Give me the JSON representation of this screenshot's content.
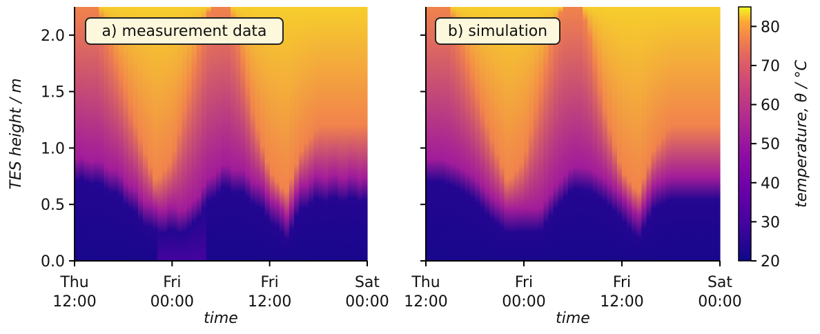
{
  "chart_data": {
    "type": "heatmap",
    "panels": [
      {
        "label": "a) measurement data",
        "xlabel": "time",
        "ylabel": "TES height / m",
        "source": "measurement"
      },
      {
        "label": "b) simulation",
        "xlabel": "time",
        "ylabel": "",
        "source": "simulation"
      }
    ],
    "x_range": [
      "Thu 12:00",
      "Sat 00:00"
    ],
    "x_ticks": [
      {
        "line1": "Thu",
        "line2": "12:00"
      },
      {
        "line1": "Fri",
        "line2": "00:00"
      },
      {
        "line1": "Fri",
        "line2": "12:00"
      },
      {
        "line1": "Sat",
        "line2": "00:00"
      }
    ],
    "y_range": [
      0.0,
      2.25
    ],
    "y_ticks": [
      "0.0",
      "0.5",
      "1.0",
      "1.5",
      "2.0"
    ],
    "y_tick_values": [
      0.0,
      0.5,
      1.0,
      1.5,
      2.0
    ],
    "colorbar": {
      "label": "temperature,  θ  / °C",
      "range": [
        20,
        85
      ],
      "ticks": [
        "20",
        "30",
        "40",
        "50",
        "60",
        "70",
        "80"
      ],
      "tick_values": [
        20,
        30,
        40,
        50,
        60,
        70,
        80
      ],
      "colormap": "plasma"
    },
    "profile_model": {
      "hours": [
        0,
        2,
        4,
        6,
        8,
        10,
        12,
        14,
        16,
        18,
        20,
        22,
        24,
        26,
        28,
        30,
        32,
        34,
        36
      ],
      "thermocline_height_m": [
        0.78,
        0.78,
        0.72,
        0.62,
        0.45,
        0.33,
        0.34,
        0.34,
        0.55,
        0.72,
        0.7,
        0.6,
        0.45,
        0.27,
        0.55,
        0.62,
        0.62,
        0.62,
        0.62
      ],
      "upper_boundary_height_m": [
        2.3,
        2.4,
        2.0,
        1.55,
        1.1,
        0.7,
        0.9,
        1.5,
        2.1,
        2.5,
        2.0,
        1.3,
        0.8,
        0.6,
        1.0,
        1.2,
        1.2,
        1.2,
        1.2
      ],
      "bottom_temperature_c": 22,
      "middle_temperature_c": 52,
      "top_temperature_c": 83
    }
  }
}
